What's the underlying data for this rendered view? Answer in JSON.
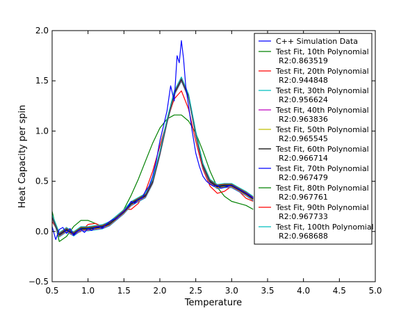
{
  "chart_data": {
    "type": "line",
    "title": "",
    "xlabel": "Temperature",
    "ylabel": "Heat Capacity per spin",
    "xlim": [
      0.5,
      5.0
    ],
    "ylim": [
      -0.5,
      2.0
    ],
    "xticks": [
      "0.5",
      "1.0",
      "1.5",
      "2.0",
      "2.5",
      "3.0",
      "3.5",
      "4.0",
      "4.5",
      "5.0"
    ],
    "yticks": [
      "−0.5",
      "0.0",
      "0.5",
      "1.0",
      "1.5",
      "2.0"
    ],
    "legend_position": "top-right",
    "data_series": {
      "name": "C++ Simulation Data",
      "color": "#0000ff",
      "x": [
        0.5,
        0.55,
        0.6,
        0.65,
        0.7,
        0.75,
        0.8,
        0.85,
        0.9,
        0.95,
        1.0,
        1.05,
        1.1,
        1.15,
        1.2,
        1.25,
        1.3,
        1.35,
        1.4,
        1.45,
        1.5,
        1.55,
        1.6,
        1.65,
        1.7,
        1.75,
        1.8,
        1.85,
        1.9,
        1.95,
        2.0,
        2.05,
        2.1,
        2.15,
        2.2,
        2.24,
        2.27,
        2.3,
        2.33,
        2.36,
        2.4,
        2.45,
        2.5,
        2.55,
        2.6,
        2.65,
        2.7,
        2.75,
        2.8,
        2.85,
        2.9,
        2.95,
        3.0,
        3.05,
        3.1,
        3.15,
        3.2,
        3.25,
        3.3
      ],
      "y": [
        0.05,
        -0.08,
        0.02,
        0.04,
        -0.02,
        0.03,
        -0.04,
        0.0,
        0.02,
        -0.01,
        0.03,
        0.01,
        0.04,
        0.05,
        0.03,
        0.07,
        0.1,
        0.12,
        0.13,
        0.17,
        0.2,
        0.24,
        0.3,
        0.28,
        0.32,
        0.33,
        0.4,
        0.45,
        0.55,
        0.7,
        0.9,
        1.05,
        1.2,
        1.45,
        1.3,
        1.75,
        1.68,
        1.9,
        1.72,
        1.45,
        1.25,
        1.0,
        0.78,
        0.65,
        0.55,
        0.5,
        0.47,
        0.45,
        0.46,
        0.43,
        0.44,
        0.45,
        0.46,
        0.44,
        0.42,
        0.4,
        0.38,
        0.36,
        0.33
      ]
    },
    "fits": [
      {
        "name": "Test Fit, 10th Polynomial",
        "r2": "R2:0.863519",
        "color": "#008000"
      },
      {
        "name": "Test Fit, 20th Polynomial",
        "r2": "R2:0.944848",
        "color": "#ff0000"
      },
      {
        "name": "Test Fit, 30th Polynomial",
        "r2": "R2:0.956624",
        "color": "#00bfbf"
      },
      {
        "name": "Test Fit, 40th Polynomial",
        "r2": "R2:0.963836",
        "color": "#bf00bf"
      },
      {
        "name": "Test Fit, 50th Polynomial",
        "r2": "R2:0.965545",
        "color": "#bfbf00"
      },
      {
        "name": "Test Fit, 60th Polynomial",
        "r2": "R2:0.966714",
        "color": "#000000"
      },
      {
        "name": "Test Fit, 70th Polynomial",
        "r2": "R2:0.967479",
        "color": "#0000ff"
      },
      {
        "name": "Test Fit, 80th Polynomial",
        "r2": "R2:0.967761",
        "color": "#008000"
      },
      {
        "name": "Test Fit, 90th Polynomial",
        "r2": "R2:0.967733",
        "color": "#ff0000"
      },
      {
        "name": "Test Fit, 100th Polynomial",
        "r2": "R2:0.968688",
        "color": "#00bfbf"
      }
    ],
    "fit_curves": {
      "x": [
        0.5,
        0.6,
        0.7,
        0.8,
        0.9,
        1.0,
        1.1,
        1.2,
        1.3,
        1.4,
        1.5,
        1.6,
        1.7,
        1.8,
        1.9,
        2.0,
        2.1,
        2.2,
        2.3,
        2.4,
        2.5,
        2.6,
        2.7,
        2.8,
        2.9,
        3.0,
        3.1,
        3.2,
        3.3
      ],
      "high_order": [
        0.15,
        -0.03,
        0.02,
        -0.02,
        0.03,
        0.03,
        0.04,
        0.05,
        0.08,
        0.14,
        0.2,
        0.28,
        0.32,
        0.36,
        0.5,
        0.78,
        1.1,
        1.38,
        1.52,
        1.35,
        0.98,
        0.66,
        0.5,
        0.45,
        0.46,
        0.46,
        0.42,
        0.38,
        0.33
      ],
      "p10": [
        0.2,
        -0.1,
        -0.05,
        0.05,
        0.11,
        0.11,
        0.08,
        0.05,
        0.06,
        0.12,
        0.22,
        0.36,
        0.52,
        0.7,
        0.88,
        1.03,
        1.12,
        1.16,
        1.16,
        1.1,
        0.98,
        0.8,
        0.6,
        0.44,
        0.35,
        0.3,
        0.28,
        0.26,
        0.22
      ],
      "p20": [
        0.1,
        -0.02,
        0.04,
        -0.03,
        0.0,
        0.07,
        0.08,
        0.05,
        0.06,
        0.14,
        0.22,
        0.22,
        0.28,
        0.4,
        0.6,
        0.85,
        1.1,
        1.32,
        1.4,
        1.22,
        0.9,
        0.62,
        0.45,
        0.38,
        0.4,
        0.45,
        0.4,
        0.33,
        0.3
      ]
    }
  }
}
